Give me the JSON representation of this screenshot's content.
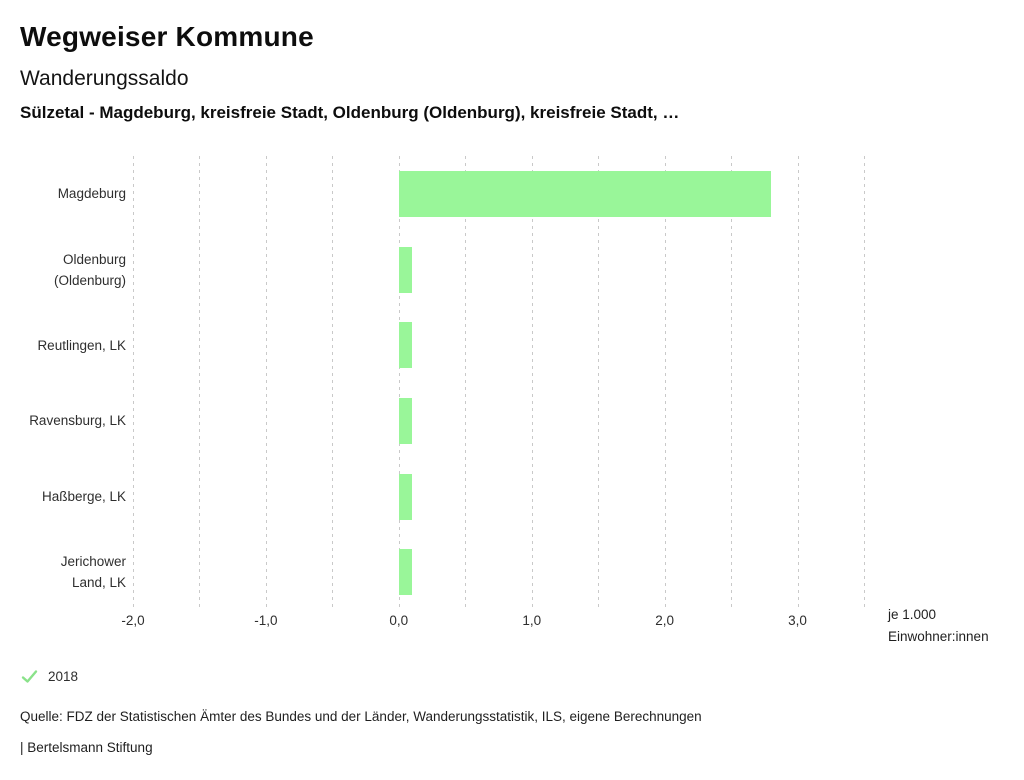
{
  "header": {
    "app_title": "Wegweiser Kommune",
    "chart_title": "Wanderungssaldo",
    "subtitle": "Sülzetal - Magdeburg, kreisfreie Stadt, Oldenburg (Oldenburg), kreisfreie Stadt, …"
  },
  "chart_data": {
    "type": "bar",
    "orientation": "horizontal",
    "title": "Wanderungssaldo",
    "categories": [
      "Magdeburg",
      "Oldenburg (Oldenburg)",
      "Reutlingen, LK",
      "Ravensburg, LK",
      "Haßberge, LK",
      "Jerichower Land, LK"
    ],
    "category_label_lines": [
      [
        "Magdeburg"
      ],
      [
        "Oldenburg",
        "(Oldenburg)"
      ],
      [
        "Reutlingen, LK"
      ],
      [
        "Ravensburg, LK"
      ],
      [
        "Haßberge, LK"
      ],
      [
        "Jerichower",
        "Land, LK"
      ]
    ],
    "series": [
      {
        "name": "2018",
        "values": [
          2.8,
          0.1,
          0.1,
          0.1,
          0.1,
          0.1
        ]
      }
    ],
    "xlim": [
      -2.0,
      3.5
    ],
    "grid_step": 0.5,
    "grid": true,
    "tick_values": [
      -2.0,
      -1.0,
      0.0,
      1.0,
      2.0,
      3.0
    ],
    "tick_labels": [
      "-2,0",
      "-1,0",
      "0,0",
      "1,0",
      "2,0",
      "3,0"
    ],
    "xlabel_lines": [
      "je 1.000",
      "Einwohner:innen"
    ],
    "bar_color": "#99f699",
    "gridline_color": "#c9c9c9",
    "legend_position": "bottom-left"
  },
  "legend": {
    "items": [
      {
        "label": "2018",
        "checked": true,
        "check_color": "#8ae28a"
      }
    ]
  },
  "footer": {
    "source": "Quelle: FDZ der Statistischen Ämter des Bundes und der Länder, Wanderungsstatistik, ILS, eigene Berechnungen",
    "attribution": "| Bertelsmann Stiftung"
  }
}
